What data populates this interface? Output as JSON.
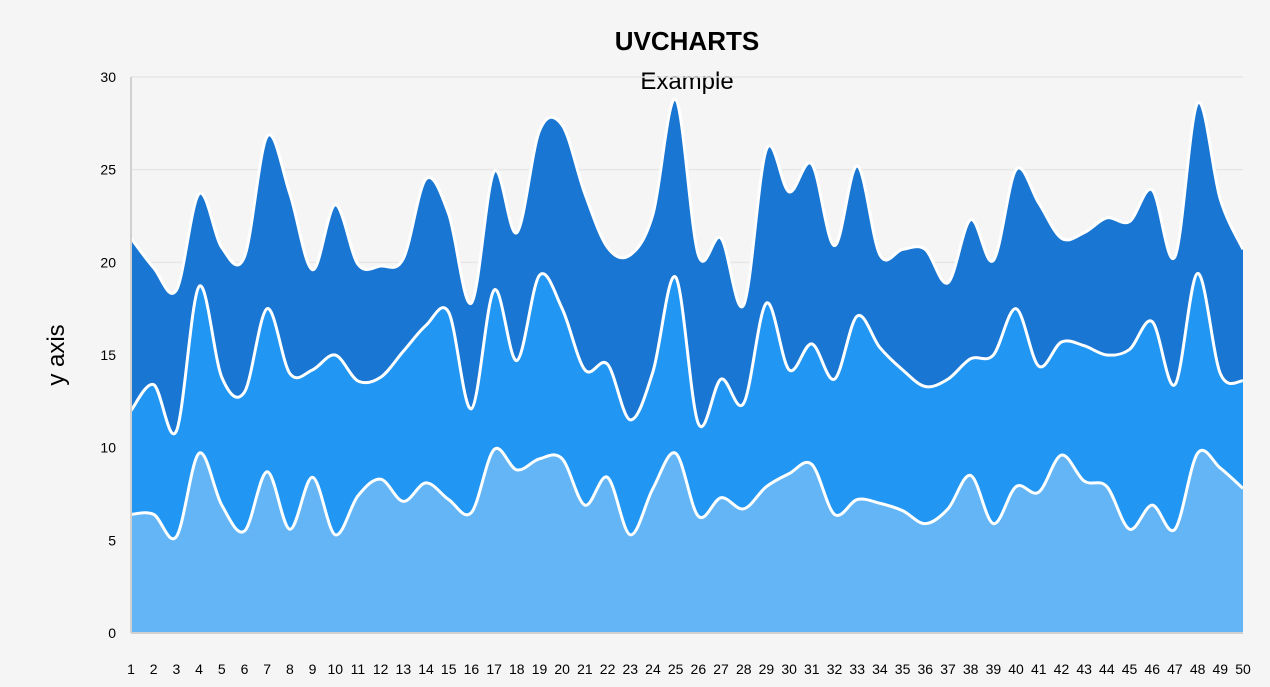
{
  "chart_data": {
    "type": "area",
    "stacked": true,
    "title": "UVCHARTS",
    "subtitle": "Example",
    "xlabel": "",
    "ylabel": "y axis",
    "ylim": [
      0,
      30
    ],
    "yticks": [
      0,
      5,
      10,
      15,
      20,
      25,
      30
    ],
    "grid": true,
    "legend": "none",
    "colors": [
      "#64b5f6",
      "#2196f3",
      "#1976d2"
    ],
    "line_color": "#ffffff",
    "categories": [
      "1",
      "2",
      "3",
      "4",
      "5",
      "6",
      "7",
      "8",
      "9",
      "10",
      "11",
      "12",
      "13",
      "14",
      "15",
      "16",
      "17",
      "18",
      "19",
      "20",
      "21",
      "22",
      "23",
      "24",
      "25",
      "26",
      "27",
      "28",
      "29",
      "30",
      "31",
      "32",
      "33",
      "34",
      "35",
      "36",
      "37",
      "38",
      "39",
      "40",
      "41",
      "42",
      "43",
      "44",
      "45",
      "46",
      "47",
      "48",
      "49",
      "50"
    ],
    "series": [
      {
        "values": [
          6.4,
          6.4,
          5.2,
          9.7,
          6.9,
          5.5,
          8.7,
          5.6,
          8.4,
          5.3,
          7.4,
          8.3,
          7.1,
          8.1,
          7.2,
          6.5,
          9.9,
          8.8,
          9.4,
          9.4,
          6.9,
          8.4,
          5.3,
          7.8,
          9.7,
          6.3,
          7.3,
          6.7,
          7.9,
          8.6,
          9.1,
          6.4,
          7.2,
          7.0,
          6.6,
          5.9,
          6.7,
          8.5,
          5.9,
          7.9,
          7.6,
          9.6,
          8.2,
          7.9,
          5.6,
          6.9,
          5.6,
          9.7,
          8.9,
          7.8
        ]
      },
      {
        "values": [
          5.6,
          7.0,
          5.7,
          9.0,
          6.9,
          7.5,
          8.8,
          8.4,
          5.8,
          9.7,
          6.2,
          5.5,
          8.1,
          8.5,
          10.1,
          5.6,
          8.6,
          5.9,
          9.9,
          8.1,
          7.3,
          6.1,
          6.2,
          6.3,
          9.5,
          5.0,
          6.4,
          5.7,
          9.9,
          5.6,
          6.5,
          7.3,
          9.9,
          8.4,
          7.6,
          7.4,
          7.0,
          6.3,
          9.1,
          9.6,
          6.8,
          6.1,
          7.3,
          7.1,
          9.7,
          9.9,
          7.8,
          9.7,
          5.1,
          5.8
        ]
      },
      {
        "values": [
          9.3,
          6.3,
          7.6,
          5.0,
          7.0,
          7.3,
          9.3,
          9.7,
          5.4,
          8.1,
          6.3,
          6.0,
          5.0,
          7.9,
          5.3,
          5.7,
          6.4,
          6.9,
          7.8,
          9.9,
          9.5,
          6.3,
          8.9,
          8.5,
          9.6,
          9.1,
          7.6,
          5.3,
          8.3,
          9.6,
          9.7,
          7.2,
          8.1,
          5.0,
          6.5,
          7.4,
          5.2,
          7.5,
          5.1,
          7.5,
          8.8,
          5.6,
          6.1,
          7.4,
          6.9,
          7.1,
          6.9,
          9.2,
          9.4,
          7.1
        ]
      }
    ]
  }
}
